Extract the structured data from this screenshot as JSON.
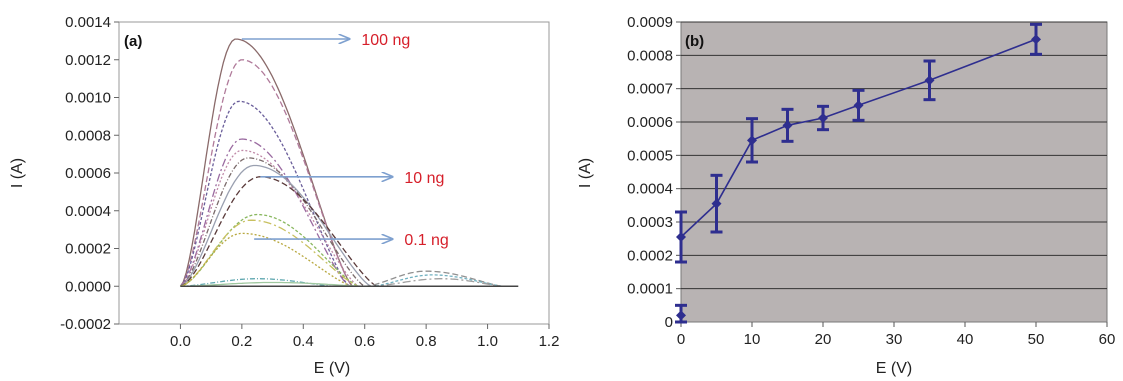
{
  "chart_data": [
    {
      "type": "line",
      "panel_label": "(a)",
      "xlabel": "E (V)",
      "ylabel": "I (A)",
      "xlim": [
        -0.2,
        1.2
      ],
      "ylim": [
        -0.0002,
        0.0014
      ],
      "x_ticks": [
        "0.0",
        "0.2",
        "0.4",
        "0.6",
        "0.8",
        "1.0",
        "1.2"
      ],
      "y_ticks": [
        "-0.0002",
        "0.0000",
        "0.0002",
        "0.0004",
        "0.0006",
        "0.0008",
        "0.0010",
        "0.0012",
        "0.0014"
      ],
      "grid": false,
      "annotations": [
        {
          "text": "100 ng",
          "arrow_from": [
            0.2,
            0.00131
          ],
          "arrow_to": [
            0.55,
            0.00131
          ],
          "color": "#d61f2a"
        },
        {
          "text": "10 ng",
          "arrow_from": [
            0.26,
            0.00058
          ],
          "arrow_to": [
            0.69,
            0.00058
          ],
          "color": "#d61f2a"
        },
        {
          "text": "0.1 ng",
          "arrow_from": [
            0.24,
            0.00025
          ],
          "arrow_to": [
            0.69,
            0.00025
          ],
          "color": "#d61f2a"
        }
      ],
      "series": [
        {
          "peak_x": 0.18,
          "peak_y": 0.00131,
          "end_x": 0.56,
          "color": "#8a6a6a"
        },
        {
          "peak_x": 0.2,
          "peak_y": 0.0012,
          "end_x": 0.56,
          "color": "#b07a9a"
        },
        {
          "peak_x": 0.19,
          "peak_y": 0.00098,
          "end_x": 0.55,
          "color": "#6a5e9a"
        },
        {
          "peak_x": 0.2,
          "peak_y": 0.00078,
          "end_x": 0.55,
          "color": "#9a6aa0"
        },
        {
          "peak_x": 0.2,
          "peak_y": 0.00072,
          "end_x": 0.58,
          "color": "#c08aa8"
        },
        {
          "peak_x": 0.22,
          "peak_y": 0.00068,
          "end_x": 0.6,
          "color": "#7a6a6a"
        },
        {
          "peak_x": 0.24,
          "peak_y": 0.00064,
          "end_x": 0.62,
          "color": "#9aa0b0"
        },
        {
          "peak_x": 0.26,
          "peak_y": 0.00058,
          "end_x": 0.64,
          "color": "#5a3a3a"
        },
        {
          "peak_x": 0.25,
          "peak_y": 0.00038,
          "end_x": 0.58,
          "color": "#8ab860"
        },
        {
          "peak_x": 0.23,
          "peak_y": 0.00035,
          "end_x": 0.58,
          "color": "#c8c060"
        },
        {
          "peak_x": 0.2,
          "peak_y": 0.00028,
          "end_x": 0.56,
          "color": "#b8a840"
        },
        {
          "peak_x": 0.25,
          "peak_y": 4e-05,
          "end_x": 0.5,
          "color": "#60a8b0"
        },
        {
          "peak_x": 0.3,
          "peak_y": 2e-05,
          "end_x": 0.6,
          "color": "#a0c8a0"
        },
        {
          "peak_x": 0.8,
          "peak_y": 8e-05,
          "end_x": 1.05,
          "start_x": 0.6,
          "color": "#909090"
        },
        {
          "peak_x": 0.82,
          "peak_y": 6e-05,
          "end_x": 1.05,
          "start_x": 0.62,
          "color": "#70b0c0"
        },
        {
          "peak_x": 0.85,
          "peak_y": 4e-05,
          "end_x": 1.05,
          "start_x": 0.62,
          "color": "#a0a0a0"
        }
      ],
      "baseline_x": [
        0.0,
        1.1
      ]
    },
    {
      "type": "line",
      "panel_label": "(b)",
      "xlabel": "E (V)",
      "ylabel": "I (A)",
      "xlim": [
        0,
        60
      ],
      "ylim": [
        0,
        0.0009
      ],
      "x_ticks": [
        "0",
        "10",
        "20",
        "30",
        "40",
        "50",
        "60"
      ],
      "y_ticks": [
        "0",
        "0.0001",
        "0.0002",
        "0.0003",
        "0.0004",
        "0.0005",
        "0.0006",
        "0.0007",
        "0.0008",
        "0.0009"
      ],
      "grid": true,
      "plot_background": "#b8b3b3",
      "line_color": "#2e2e8f",
      "x": [
        0,
        0,
        5,
        10,
        15,
        20,
        25,
        35,
        50
      ],
      "y": [
        2e-05,
        0.000255,
        0.000355,
        0.000545,
        0.00059,
        0.000612,
        0.00065,
        0.000725,
        0.000848
      ],
      "y_err": [
        3e-05,
        7.5e-05,
        8.5e-05,
        6.5e-05,
        4.8e-05,
        3.5e-05,
        4.5e-05,
        5.8e-05,
        4.5e-05
      ]
    }
  ]
}
